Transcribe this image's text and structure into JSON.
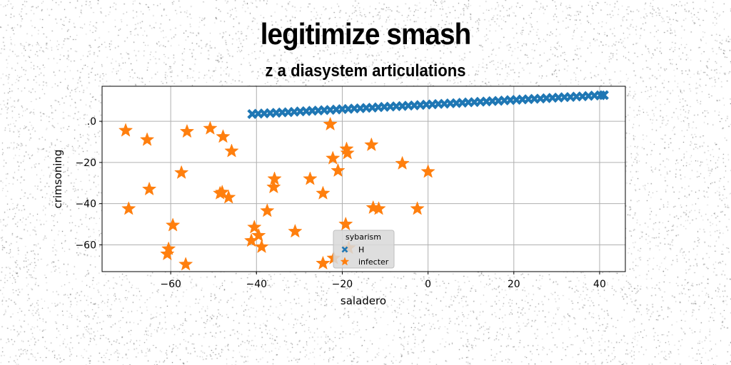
{
  "title": "legitimize smash",
  "subtitle": "z a diasystem articulations",
  "chart_data": {
    "type": "scatter",
    "title": "legitimize smash",
    "subtitle": "z a diasystem articulations",
    "xlabel": "saladero",
    "ylabel": "crimsoning",
    "xlim": [
      -76,
      46
    ],
    "ylim": [
      -73,
      17
    ],
    "xticks": [
      -60,
      -40,
      -20,
      0,
      20,
      40
    ],
    "xtick_labels": [
      "−60",
      "−40",
      "−20",
      "0",
      "20",
      "40"
    ],
    "yticks": [
      0,
      -20,
      -40,
      -60
    ],
    "ytick_labels": [
      ".0",
      "−20",
      "−40",
      "−60"
    ],
    "grid": true,
    "legend": {
      "title": "sybarism",
      "placement": "lower-center",
      "entries": [
        {
          "label": "H",
          "marker": "x-thick",
          "color": "#1f77b4"
        },
        {
          "label": "infecter",
          "marker": "star",
          "color": "#ff7f0e"
        }
      ]
    },
    "series": [
      {
        "name": "H",
        "marker": "x-thick",
        "color": "#1f77b4",
        "x": [
          -41,
          -39.6,
          -38.2,
          -36.8,
          -35.4,
          -34,
          -32.6,
          -31.2,
          -29.8,
          -28.4,
          -27,
          -25.6,
          -24.2,
          -22.8,
          -21.4,
          -20,
          -18.6,
          -17.2,
          -15.8,
          -14.4,
          -13,
          -11.6,
          -10.2,
          -8.8,
          -7.4,
          -6,
          -4.6,
          -3.2,
          -1.8,
          -0.4,
          1,
          2.4,
          3.8,
          5.2,
          6.6,
          8,
          9.4,
          10.8,
          12.2,
          13.6,
          15,
          16.4,
          17.8,
          19.2,
          20.6,
          22,
          23.4,
          24.8,
          26.2,
          27.6,
          29,
          30.4,
          31.8,
          33.2,
          34.6,
          36,
          37.4,
          38.8,
          40.2,
          41
        ],
        "y": [
          3.5,
          3.7,
          3.8,
          4.0,
          4.1,
          4.3,
          4.4,
          4.6,
          4.8,
          4.9,
          5.1,
          5.2,
          5.4,
          5.5,
          5.7,
          5.9,
          6.0,
          6.2,
          6.3,
          6.5,
          6.6,
          6.8,
          7.0,
          7.1,
          7.3,
          7.4,
          7.6,
          7.7,
          7.9,
          8.1,
          8.2,
          8.4,
          8.5,
          8.7,
          8.8,
          9.0,
          9.2,
          9.3,
          9.5,
          9.6,
          9.8,
          9.9,
          10.1,
          10.3,
          10.4,
          10.6,
          10.7,
          10.9,
          11.0,
          11.2,
          11.4,
          11.5,
          11.7,
          11.8,
          12.0,
          12.1,
          12.3,
          12.5,
          12.6,
          12.7
        ]
      },
      {
        "name": "infecter",
        "marker": "star",
        "color": "#ff7f0e",
        "x": [
          -70.5,
          -69.8,
          -65.5,
          -65,
          -60.5,
          -60.8,
          -59.5,
          -57.5,
          -56.2,
          -56.5,
          -50.8,
          -48.5,
          -48,
          -47.8,
          -46.5,
          -45.8,
          -40.5,
          -41.2,
          -39.5,
          -38.8,
          -37.5,
          -36,
          -35.8,
          -31,
          -27.5,
          -24.5,
          -24.5,
          -22.8,
          -22.2,
          -22,
          -21,
          -19.2,
          -19,
          -18.8,
          -18.5,
          -13.2,
          -12.8,
          -11.5,
          -6,
          -2.5,
          0
        ],
        "y": [
          -4.5,
          -42.5,
          -9,
          -33,
          -62,
          -64.5,
          -50.5,
          -25,
          -5,
          -69.5,
          -3.5,
          -35,
          -34.5,
          -7.5,
          -37,
          -14.5,
          -51.5,
          -58,
          -55.5,
          -61,
          -43.5,
          -32,
          -28,
          -53.5,
          -28,
          -35,
          -69,
          -1.5,
          -18,
          -66.5,
          -24,
          -50,
          -13.5,
          -15.5,
          -61.5,
          -11.5,
          -42,
          -42.5,
          -20.5,
          -42.5,
          -24.5
        ]
      }
    ]
  }
}
